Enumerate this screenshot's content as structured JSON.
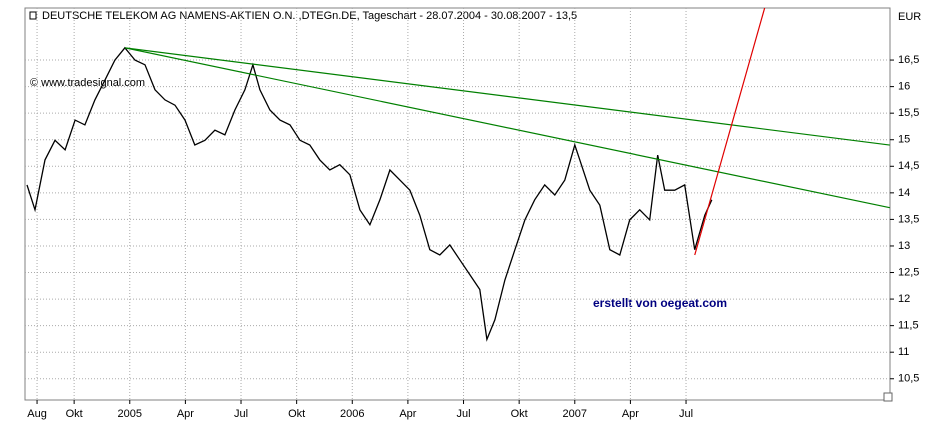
{
  "chart_data": {
    "type": "line",
    "title": "DEUTSCHE TELEKOM AG NAMENS-AKTIEN O.N. ,DTEGn.DE, Tageschart - 28.07.2004 - 30.08.2007 - 13,5",
    "copyright": "© www.tradesignal.com",
    "annotation": "erstellt von oegeat.com",
    "y_unit": "EUR",
    "x": [
      0.46,
      0.89,
      1.43,
      1.97,
      2.51,
      3.05,
      3.58,
      4.12,
      4.66,
      5.2,
      5.74,
      6.28,
      6.82,
      7.36,
      7.9,
      8.44,
      8.98,
      9.51,
      10.05,
      10.59,
      11.13,
      11.67,
      12.21,
      12.64,
      13.02,
      13.56,
      14.1,
      14.64,
      15.18,
      15.71,
      16.25,
      16.79,
      17.33,
      17.87,
      18.41,
      18.95,
      19.49,
      20.03,
      20.57,
      21.11,
      21.64,
      22.18,
      22.72,
      23.26,
      23.8,
      24.34,
      24.88,
      25.26,
      25.69,
      26.23,
      26.77,
      27.31,
      27.84,
      28.38,
      28.92,
      29.46,
      30,
      30.27,
      30.81,
      31.35,
      31.89,
      32.43,
      32.96,
      33.5,
      34.04,
      34.47,
      34.85,
      35.39,
      35.93,
      36.47,
      37.01,
      37.39
    ],
    "values": [
      14.15,
      13.68,
      14.62,
      14.99,
      14.81,
      15.37,
      15.28,
      15.75,
      16.12,
      16.5,
      16.73,
      16.5,
      16.41,
      15.94,
      15.75,
      15.65,
      15.37,
      14.9,
      14.99,
      15.18,
      15.09,
      15.56,
      15.94,
      16.41,
      15.94,
      15.56,
      15.37,
      15.28,
      14.99,
      14.9,
      14.62,
      14.43,
      14.53,
      14.34,
      13.68,
      13.4,
      13.87,
      14.43,
      14.24,
      14.05,
      13.58,
      12.93,
      12.83,
      13.02,
      12.74,
      12.46,
      12.18,
      11.24,
      11.61,
      12.36,
      12.93,
      13.49,
      13.87,
      14.15,
      13.96,
      14.24,
      14.9,
      14.62,
      14.05,
      13.77,
      12.93,
      12.83,
      13.49,
      13.68,
      13.49,
      14.71,
      14.05,
      14.05,
      14.15,
      12.93,
      13.58,
      13.87
    ],
    "color": "#000000",
    "trendlines": [
      {
        "x": [
          5.74,
          46.99
        ],
        "values": [
          16.73,
          14.9
        ],
        "color": "#008000"
      },
      {
        "x": [
          5.74,
          46.99
        ],
        "values": [
          16.73,
          13.72
        ],
        "color": "#008000"
      },
      {
        "x": [
          36.47,
          40.24
        ],
        "values": [
          12.83,
          17.48
        ],
        "color": "#e00000"
      }
    ],
    "xlim": [
      0.35,
      47
    ],
    "xticks": [
      {
        "value": 1,
        "label": "Aug"
      },
      {
        "value": 3,
        "label": "Okt"
      },
      {
        "value": 6,
        "label": "2005"
      },
      {
        "value": 9,
        "label": "Apr"
      },
      {
        "value": 12,
        "label": "Jul"
      },
      {
        "value": 15,
        "label": "Okt"
      },
      {
        "value": 18,
        "label": "2006"
      },
      {
        "value": 21,
        "label": "Apr"
      },
      {
        "value": 24,
        "label": "Jul"
      },
      {
        "value": 27,
        "label": "Okt"
      },
      {
        "value": 30,
        "label": "2007"
      },
      {
        "value": 33,
        "label": "Apr"
      },
      {
        "value": 36,
        "label": "Jul"
      }
    ],
    "ylim": [
      10.1,
      17.48
    ],
    "yticks": [
      {
        "value": 10.5,
        "label": "10,5"
      },
      11,
      {
        "value": 11.5,
        "label": "11,5"
      },
      12,
      {
        "value": 12.5,
        "label": "12,5"
      },
      13,
      {
        "value": 13.5,
        "label": "13,5"
      },
      14,
      {
        "value": 14.5,
        "label": "14,5"
      },
      15,
      {
        "value": 15.5,
        "label": "15,5"
      },
      16,
      {
        "value": 16.5,
        "label": "16,5"
      }
    ],
    "grid": true
  }
}
